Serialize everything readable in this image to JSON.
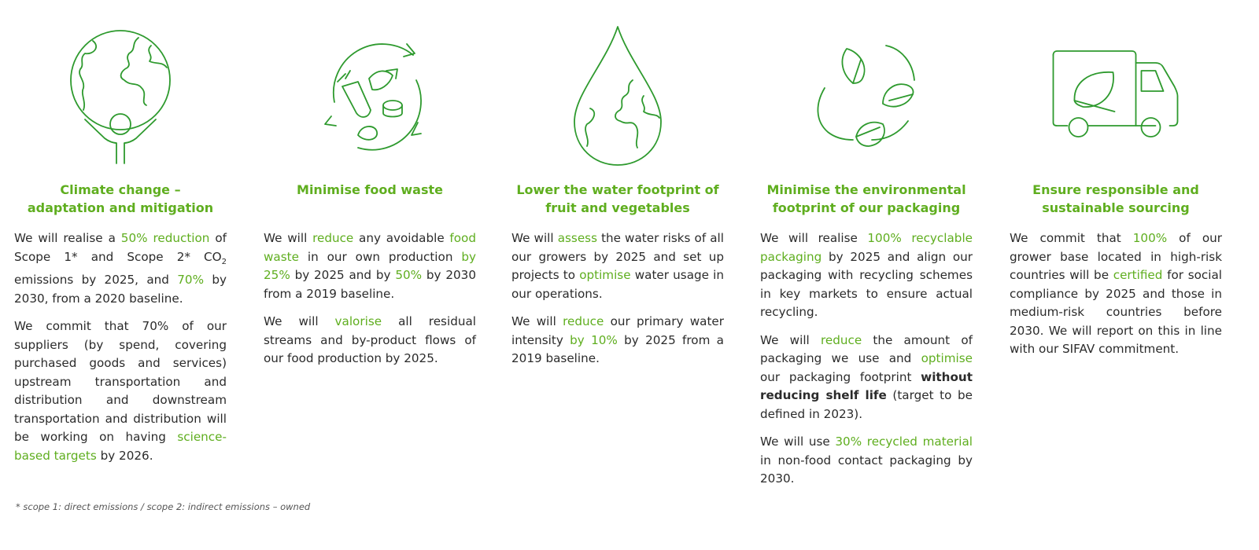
{
  "columns": [
    {
      "icon": "globe-person-icon",
      "title_line1": "Climate change –",
      "title_line2": "adaptation and mitigation",
      "p1": {
        "a": "We will realise a ",
        "b": "50% reduction",
        "c": " of Scope 1* and Scope 2* CO",
        "sub": "2",
        "d": " emissions by 2025, and ",
        "e": "70%",
        "f": " by 2030, from a 2020 baseline."
      },
      "p2": {
        "a": "We commit that 70% of our suppliers (by spend, covering purchased goods and services) upstream transportation and distribution and downstream transportation and distribution will be working on having ",
        "b": "science-based targets",
        "c": " by 2026."
      }
    },
    {
      "icon": "food-recycle-icon",
      "title_line1": "Minimise food waste",
      "p1": {
        "a": "We will ",
        "b": "reduce",
        "c": " any avoidable ",
        "d": "food waste",
        "e": " in our own production ",
        "f": "by 25%",
        "g": " by 2025 and by ",
        "h": "50%",
        "i": " by 2030 from a 2019 baseline."
      },
      "p2": {
        "a": "We will ",
        "b": "valorise",
        "c": " all residual streams and by-product flows of our food production by 2025."
      }
    },
    {
      "icon": "water-drop-globe-icon",
      "title_line1": "Lower the water footprint of",
      "title_line2": "fruit and vegetables",
      "p1": {
        "a": "We will ",
        "b": "assess",
        "c": " the water risks of all our growers by 2025 and set up projects to ",
        "d": "optimise",
        "e": " water usage in our operations."
      },
      "p2": {
        "a": "We will ",
        "b": "reduce",
        "c": " our primary water intensity ",
        "d": "by 10%",
        "e": " by 2025 from a 2019 baseline."
      }
    },
    {
      "icon": "leaf-recycle-icon",
      "title_line1": "Minimise the environmental",
      "title_line2": "footprint of our packaging",
      "p1": {
        "a": "We will realise ",
        "b": "100% recyclable packaging",
        "c": " by 2025 and align our packaging with recycling schemes in key markets to ensure actual recycling."
      },
      "p2": {
        "a": "We will ",
        "b": "reduce",
        "c": " the amount of packaging we use and ",
        "d": "optimise",
        "e": " our packaging footprint ",
        "f": "without reducing shelf life",
        "g": " (target to be defined in 2023)."
      },
      "p3": {
        "a": "We will use ",
        "b": "30% recycled material",
        "c": " in non-food contact packaging by 2030."
      }
    },
    {
      "icon": "leaf-truck-icon",
      "title_line1": "Ensure responsible and",
      "title_line2": "sustainable sourcing",
      "p1": {
        "a": "We commit that ",
        "b": "100%",
        "c": " of our grower base located in high-risk countries will be ",
        "d": "certified",
        "e": " for social compliance by 2025 and those in medium-risk countries before 2030. We will report on this in line with our SIFAV commitment."
      }
    }
  ],
  "footnote": "* scope 1: direct emissions / scope 2: indirect emissions – owned",
  "colors": {
    "accent": "#5fae1f",
    "icon_stroke": "#2e9a2e",
    "text": "#2b2b2b"
  }
}
